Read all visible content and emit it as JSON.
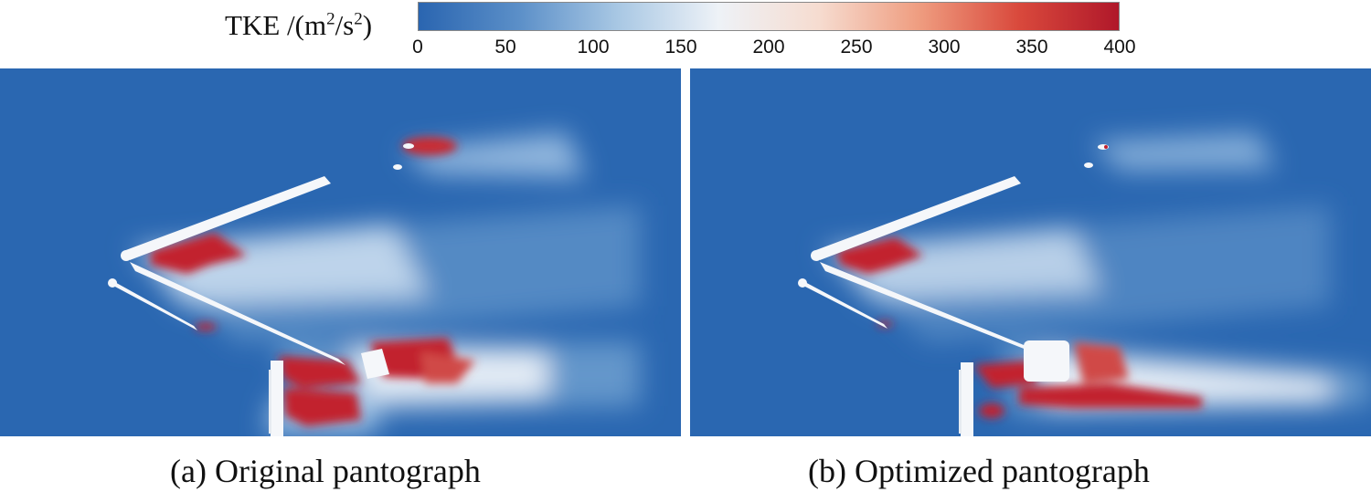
{
  "colorbar": {
    "label_main": "TKE /(m",
    "label_sup1": "2",
    "label_mid": "/s",
    "label_sup2": "2",
    "label_end": ")",
    "ticks": [
      "0",
      "50",
      "100",
      "150",
      "200",
      "250",
      "300",
      "350",
      "400"
    ],
    "range": [
      0,
      400
    ],
    "colors": [
      "#2a65b0",
      "#5b8fc8",
      "#a9c8e4",
      "#eef2f7",
      "#f6dcd0",
      "#ef9d80",
      "#d9493c",
      "#b0182a"
    ]
  },
  "panels": [
    {
      "caption": "(a) Original pantograph"
    },
    {
      "caption": "(b) Optimized pantograph"
    }
  ]
}
